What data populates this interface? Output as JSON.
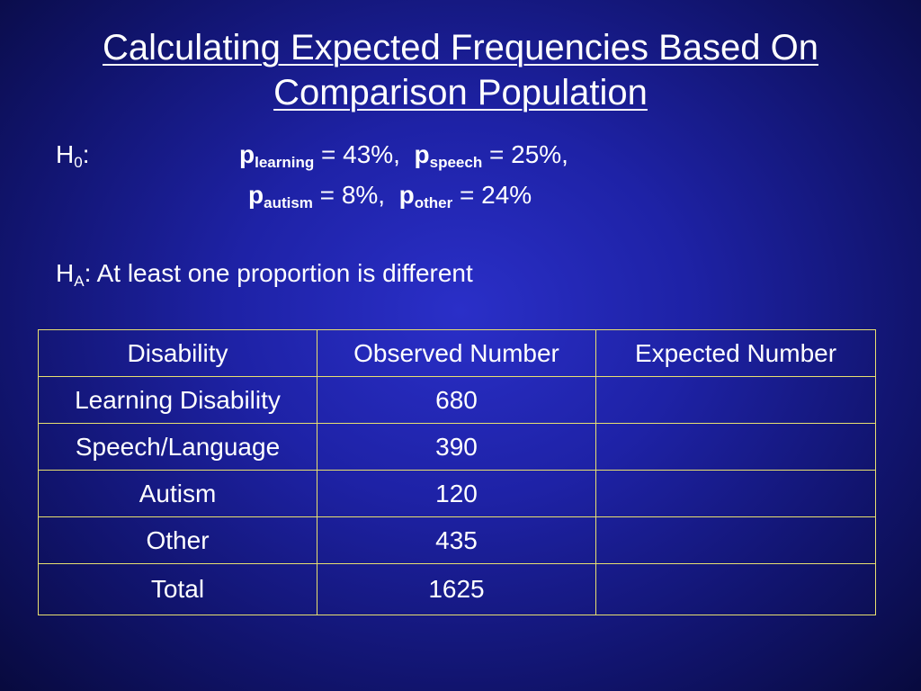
{
  "slide": {
    "title_line1": "Calculating Expected Frequencies Based On",
    "title_line2": "Comparison Population"
  },
  "null_hypothesis": {
    "label_base": "H",
    "label_sub": "0",
    "label_suffix": ":",
    "items": [
      {
        "symbol": "p",
        "subscript": "learning",
        "value": " = 43%, "
      },
      {
        "symbol": "p",
        "subscript": "speech",
        "value": " = 25%,"
      },
      {
        "symbol": "p",
        "subscript": "autism",
        "value": " = 8%, "
      },
      {
        "symbol": "p",
        "subscript": "other",
        "value": " = 24%"
      }
    ]
  },
  "alternative_hypothesis": {
    "label_base": "H",
    "label_sub": "A",
    "text": ": At least one proportion is different"
  },
  "table": {
    "headers": [
      "Disability",
      "Observed Number",
      "Expected Number"
    ],
    "rows": [
      {
        "disability": "Learning Disability",
        "observed": "680",
        "expected": ""
      },
      {
        "disability": "Speech/Language",
        "observed": "390",
        "expected": ""
      },
      {
        "disability": "Autism",
        "observed": "120",
        "expected": ""
      },
      {
        "disability": "Other",
        "observed": "435",
        "expected": ""
      },
      {
        "disability": "Total",
        "observed": "1625",
        "expected": ""
      }
    ]
  },
  "colors": {
    "background": "#1e22a6",
    "text": "#ffffff",
    "table_border": "#e8e070"
  }
}
